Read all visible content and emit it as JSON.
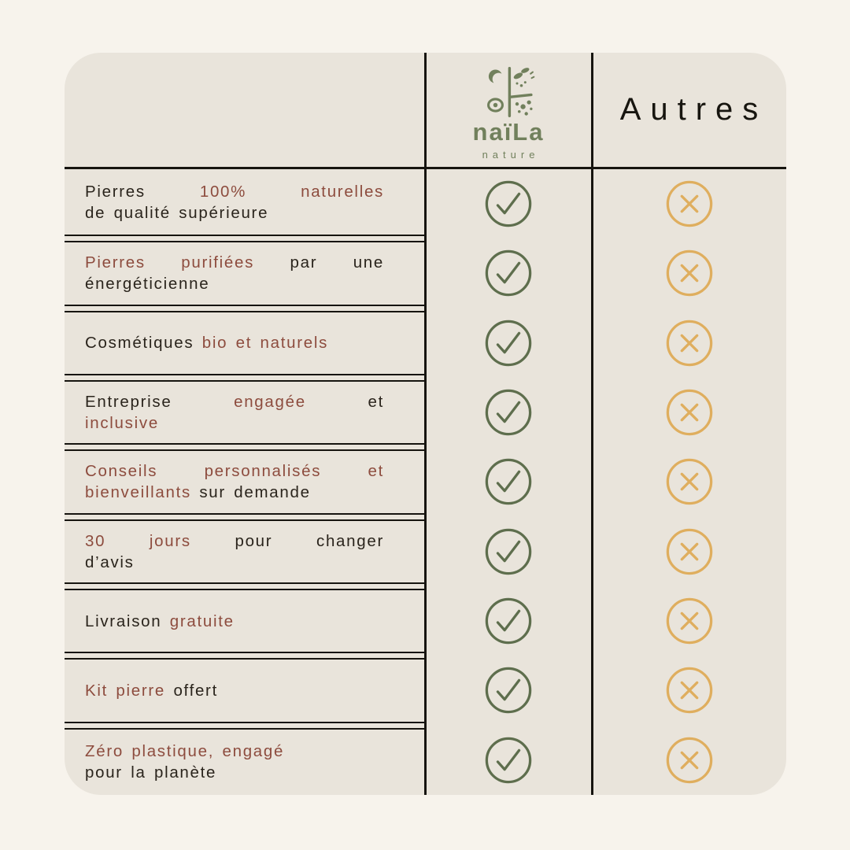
{
  "brand": {
    "name": "naïLa",
    "subtitle": "nature",
    "logo_icon": "naila-nature-botanical-mark"
  },
  "header": {
    "competitor_label": "Autres"
  },
  "colors": {
    "background": "#f7f3ec",
    "card": "#e9e4db",
    "line": "#16140f",
    "text_dark": "#2a241c",
    "text_accent": "#8d4c3e",
    "brand_green": "#71805c",
    "check_green": "#5e6e4d",
    "cross_gold": "#dfae5e"
  },
  "icons": {
    "check": "check-circle-icon",
    "cross": "x-circle-icon"
  },
  "table": {
    "rows": [
      {
        "naila": "check",
        "autres": "cross",
        "lines": [
          {
            "justify": true,
            "words": [
              {
                "t": "Pierres",
                "a": 0
              },
              {
                "t": "100%",
                "a": 1
              },
              {
                "t": "naturelles",
                "a": 1
              }
            ]
          },
          {
            "justify": false,
            "words": [
              {
                "t": "de qualité supérieure",
                "a": 0
              }
            ]
          }
        ]
      },
      {
        "naila": "check",
        "autres": "cross",
        "lines": [
          {
            "justify": true,
            "words": [
              {
                "t": "Pierres",
                "a": 1
              },
              {
                "t": "purifiées",
                "a": 1
              },
              {
                "t": "par",
                "a": 0
              },
              {
                "t": "une",
                "a": 0
              }
            ]
          },
          {
            "justify": false,
            "words": [
              {
                "t": "énergéticienne",
                "a": 0
              }
            ]
          }
        ]
      },
      {
        "naila": "check",
        "autres": "cross",
        "lines": [
          {
            "justify": false,
            "words": [
              {
                "t": "Cosmétiques",
                "a": 0
              },
              {
                "t": "bio et naturels",
                "a": 1
              }
            ]
          }
        ]
      },
      {
        "naila": "check",
        "autres": "cross",
        "lines": [
          {
            "justify": true,
            "words": [
              {
                "t": "Entreprise",
                "a": 0
              },
              {
                "t": "engagée",
                "a": 1
              },
              {
                "t": "et",
                "a": 0
              }
            ]
          },
          {
            "justify": false,
            "words": [
              {
                "t": "inclusive",
                "a": 1
              }
            ]
          }
        ]
      },
      {
        "naila": "check",
        "autres": "cross",
        "lines": [
          {
            "justify": true,
            "words": [
              {
                "t": "Conseils",
                "a": 1
              },
              {
                "t": "personnalisés",
                "a": 1
              },
              {
                "t": "et",
                "a": 1
              }
            ]
          },
          {
            "justify": false,
            "words": [
              {
                "t": "bienveillants",
                "a": 1
              },
              {
                "t": "sur demande",
                "a": 0
              }
            ]
          }
        ]
      },
      {
        "naila": "check",
        "autres": "cross",
        "lines": [
          {
            "justify": true,
            "words": [
              {
                "t": "30",
                "a": 1
              },
              {
                "t": "jours",
                "a": 1
              },
              {
                "t": "pour",
                "a": 0
              },
              {
                "t": "changer",
                "a": 0
              }
            ]
          },
          {
            "justify": false,
            "words": [
              {
                "t": "d’avis",
                "a": 0
              }
            ]
          }
        ]
      },
      {
        "naila": "check",
        "autres": "cross",
        "lines": [
          {
            "justify": false,
            "words": [
              {
                "t": "Livraison",
                "a": 0
              },
              {
                "t": "gratuite",
                "a": 1
              }
            ]
          }
        ]
      },
      {
        "naila": "check",
        "autres": "cross",
        "lines": [
          {
            "justify": false,
            "words": [
              {
                "t": "Kit pierre",
                "a": 1
              },
              {
                "t": "offert",
                "a": 0
              }
            ]
          }
        ]
      },
      {
        "naila": "check",
        "autres": "cross",
        "lines": [
          {
            "justify": false,
            "words": [
              {
                "t": "Zéro plastique, engagé",
                "a": 1
              }
            ]
          },
          {
            "justify": false,
            "words": [
              {
                "t": "pour la planète",
                "a": 0
              }
            ]
          }
        ]
      }
    ]
  }
}
